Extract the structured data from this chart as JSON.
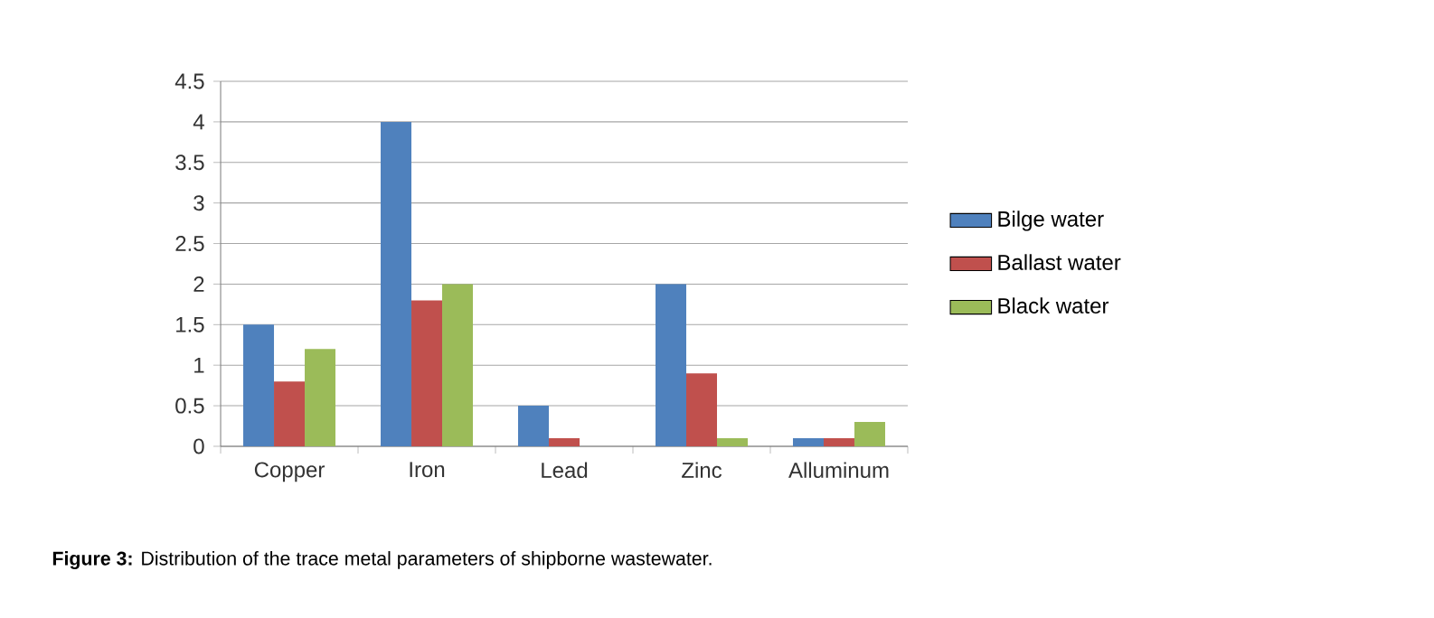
{
  "chart_data": {
    "type": "bar",
    "categories": [
      "Copper",
      "Iron",
      "Lead",
      "Zinc",
      "Alluminum"
    ],
    "series": [
      {
        "name": "Bilge water",
        "color": "#4f81bd",
        "values": [
          1.5,
          4,
          0.5,
          2,
          0.1
        ]
      },
      {
        "name": "Ballast water",
        "color": "#c0504d",
        "values": [
          0.8,
          1.8,
          0.1,
          0.9,
          0.1
        ]
      },
      {
        "name": "Black water",
        "color": "#9bbb59",
        "values": [
          1.2,
          2,
          0,
          0.1,
          0.3
        ]
      }
    ],
    "ylim": [
      0,
      4.5
    ],
    "yticks": [
      0,
      0.5,
      1,
      1.5,
      2,
      2.5,
      3,
      3.5,
      4,
      4.5
    ],
    "grid": "y",
    "legend": "right",
    "annotations": [
      "**Figure 3:** Distribution of the trace metal parameters of shipborne wastewater."
    ]
  }
}
